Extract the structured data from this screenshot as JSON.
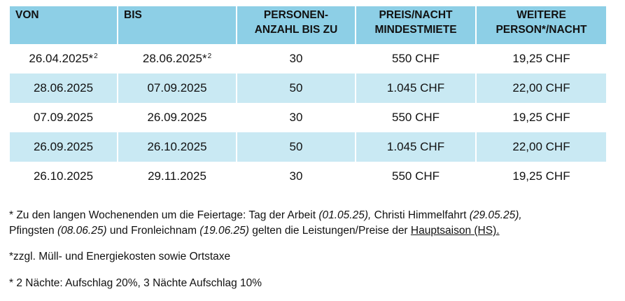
{
  "table": {
    "headers": [
      {
        "lines": [
          "VON"
        ]
      },
      {
        "lines": [
          "BIS"
        ]
      },
      {
        "lines": [
          "PERSONEN-",
          "ANZAHL BIS ZU"
        ]
      },
      {
        "lines": [
          "PREIS/NACHT",
          "MINDESTMIETE"
        ]
      },
      {
        "lines": [
          "WEITERE",
          "PERSON*/NACHT"
        ]
      }
    ],
    "rows": [
      {
        "von": "26.04.2025*",
        "von_sup": "2",
        "bis": "28.06.2025*",
        "bis_sup": "2",
        "personen": "30",
        "preis": "550 CHF",
        "weitere": "19,25 CHF"
      },
      {
        "von": "28.06.2025",
        "von_sup": "",
        "bis": "07.09.2025",
        "bis_sup": "",
        "personen": "50",
        "preis": "1.045 CHF",
        "weitere": "22,00 CHF"
      },
      {
        "von": "07.09.2025",
        "von_sup": "",
        "bis": "26.09.2025",
        "bis_sup": "",
        "personen": "30",
        "preis": "550 CHF",
        "weitere": "19,25 CHF"
      },
      {
        "von": "26.09.2025",
        "von_sup": "",
        "bis": "26.10.2025",
        "bis_sup": "",
        "personen": "50",
        "preis": "1.045 CHF",
        "weitere": "22,00 CHF"
      },
      {
        "von": "26.10.2025",
        "von_sup": "",
        "bis": "29.11.2025",
        "bis_sup": "",
        "personen": "30",
        "preis": "550 CHF",
        "weitere": "19,25 CHF"
      }
    ],
    "colors": {
      "header_bg": "#8dcfe6",
      "shaded_row_bg": "#c9e9f3"
    }
  },
  "notes": {
    "note1": {
      "intro": "* Zu den langen Wochenenden um die Feiertage: Tag der Arbeit ",
      "date1": "(01.05.25),",
      "text2": " Christi Himmelfahrt ",
      "date2": "(29.05.25),",
      "text3": "Pfingsten ",
      "date3": "(08.06.25)",
      "text4": " und Fronleichnam ",
      "date4": "(19.06.25)",
      "text5": " gelten die Leistungen/Preise der ",
      "link": "Hauptsaison (HS)."
    },
    "note2": "*zzgl. Müll- und Energiekosten sowie Ortstaxe",
    "note3": "* 2 Nächte: Aufschlag 20%, 3 Nächte Aufschlag 10%"
  }
}
